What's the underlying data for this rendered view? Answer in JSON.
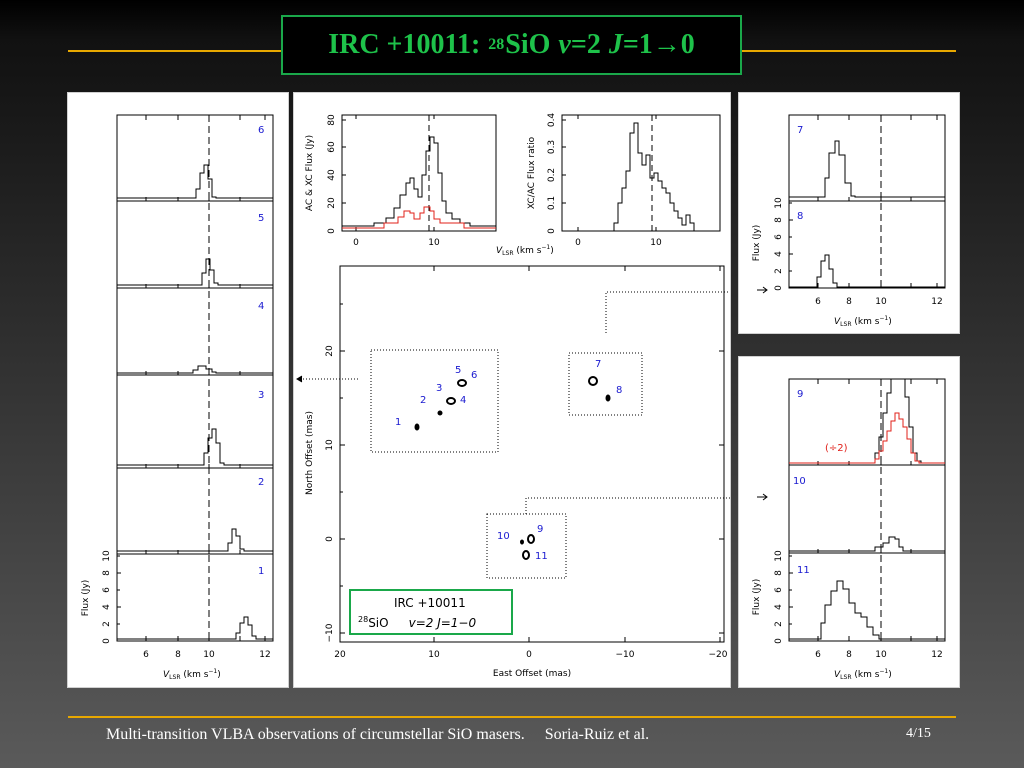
{
  "slide": {
    "title_main": "IRC +10011:",
    "title_iso": "28",
    "title_species": "SiO",
    "title_v": "v",
    "title_v_eq": "=2",
    "title_j": "J",
    "title_j_eq": "=1",
    "title_arrow": "→",
    "title_end": "0",
    "footer_left": "Multi-transition VLBA observations of circumstellar SiO masers.",
    "footer_author": "Soria-Ruiz et al.",
    "page": "4/15"
  },
  "colors": {
    "accent_line": "#e8a800",
    "title_green": "#1ec24a",
    "label_blue": "#1a1ad0",
    "spectrum_red": "#e0201a"
  },
  "axis_labels": {
    "flux": "Flux (Jy)",
    "vlsr_v": "V",
    "vlsr_sub": "LSR",
    "vlsr_units": " (km s",
    "vlsr_exp": "−1",
    "vlsr_close": ")",
    "ac_xc": "AC & XC Flux (Jy)",
    "xc_ac": "XC/AC Flux ratio",
    "north": "North Offset (mas)",
    "east": "East Offset (mas)"
  },
  "left_panel": {
    "spectra_top_to_bottom": [
      "6",
      "5",
      "4",
      "3",
      "2",
      "1"
    ],
    "x_ticks": [
      "6",
      "8",
      "10",
      "12"
    ],
    "y_ticks": [
      "0",
      "2",
      "4",
      "6",
      "8",
      "10"
    ]
  },
  "right_top_panel": {
    "spectra_top_to_bottom": [
      "7",
      "8"
    ],
    "x_ticks": [
      "6",
      "8",
      "10",
      "12"
    ],
    "y_ticks": [
      "0",
      "2",
      "4",
      "6",
      "8",
      "10"
    ]
  },
  "right_bottom_panel": {
    "spectra_top_to_bottom": [
      "9",
      "10",
      "11"
    ],
    "scale_note": "(÷2)",
    "x_ticks": [
      "6",
      "8",
      "10",
      "12"
    ],
    "y_ticks": [
      "0",
      "2",
      "4",
      "6",
      "8",
      "10"
    ]
  },
  "center_panel": {
    "ac_xc_plot": {
      "y_ticks": [
        "0",
        "20",
        "40",
        "60",
        "80"
      ],
      "x_ticks": [
        "0",
        "10"
      ]
    },
    "ratio_plot": {
      "y_ticks": [
        "0",
        "0.1",
        "0.2",
        "0.3",
        "0.4"
      ],
      "x_ticks": [
        "0",
        "10"
      ]
    },
    "map": {
      "x_ticks": [
        "20",
        "10",
        "0",
        "−10",
        "−20"
      ],
      "y_ticks": [
        "−10",
        "0",
        "10",
        "20"
      ],
      "spot_labels": [
        "1",
        "2",
        "3",
        "4",
        "5",
        "6",
        "7",
        "8",
        "9",
        "10",
        "11"
      ],
      "legend_line1": "IRC  +10011",
      "legend_iso": "28",
      "legend_species": "SiO",
      "legend_trans": "v=2  J=1−0"
    }
  }
}
